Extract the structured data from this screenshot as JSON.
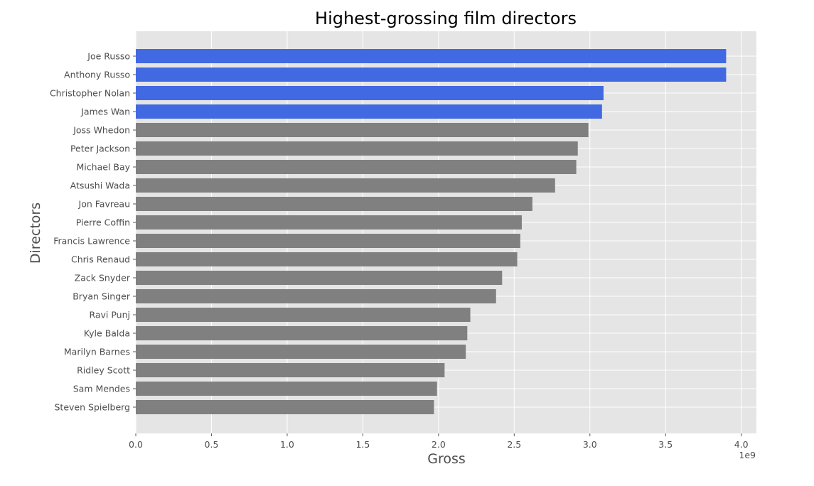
{
  "chart_data": {
    "type": "bar",
    "orientation": "horizontal",
    "title": "Highest-grossing film directors",
    "xlabel": "Gross",
    "ylabel": "Directors",
    "x_offset_label": "1e9",
    "xlim": [
      0,
      4.1
    ],
    "x_ticks": [
      "0.0",
      "0.5",
      "1.0",
      "1.5",
      "2.0",
      "2.5",
      "3.0",
      "3.5",
      "4.0"
    ],
    "grid": true,
    "categories": [
      "Joe Russo",
      "Anthony Russo",
      "Christopher Nolan",
      "James Wan",
      "Joss Whedon",
      "Peter Jackson",
      "Michael Bay",
      "Atsushi Wada",
      "Jon Favreau",
      "Pierre Coffin",
      "Francis Lawrence",
      "Chris Renaud",
      "Zack Snyder",
      "Bryan Singer",
      "Ravi Punj",
      "Kyle Balda",
      "Marilyn Barnes",
      "Ridley Scott",
      "Sam Mendes",
      "Steven Spielberg"
    ],
    "values": [
      3.9,
      3.9,
      3.09,
      3.08,
      2.99,
      2.92,
      2.91,
      2.77,
      2.62,
      2.55,
      2.54,
      2.52,
      2.42,
      2.38,
      2.21,
      2.19,
      2.18,
      2.04,
      1.99,
      1.97
    ],
    "highlight_count": 4,
    "colors": {
      "highlight": "#4169e1",
      "default": "#808080",
      "plot_background": "#e5e5e5",
      "grid": "#ffffff"
    }
  }
}
